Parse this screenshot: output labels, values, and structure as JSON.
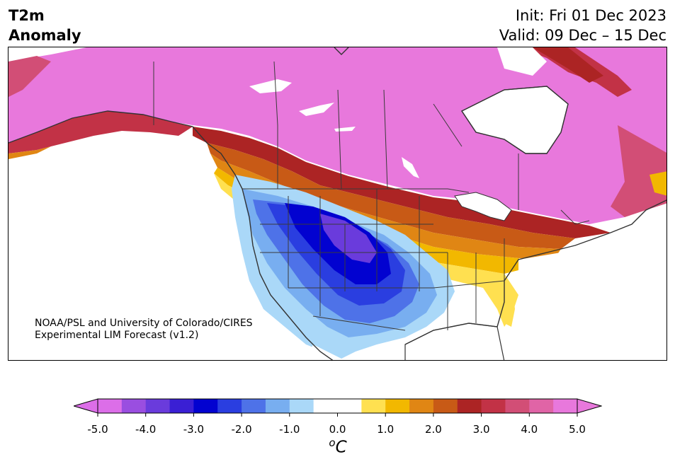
{
  "header": {
    "title_line1": "T2m",
    "title_line2": "Anomaly",
    "init": "Init: Fri 01 Dec 2023",
    "valid": "Valid: 09 Dec – 15 Dec"
  },
  "credit": {
    "line1": "NOAA/PSL and University of Colorado/CIRES",
    "line2": "Experimental LIM Forecast (v1.2)"
  },
  "colorbar": {
    "unit_base": "C",
    "unit_sup": "o",
    "ticks": [
      "-5.0",
      "-4.0",
      "-3.0",
      "-2.0",
      "-1.0",
      "0.0",
      "1.0",
      "2.0",
      "3.0",
      "4.0",
      "5.0"
    ],
    "tick_values": [
      -5,
      -4,
      -3,
      -2,
      -1,
      0,
      1,
      2,
      3,
      4,
      5
    ],
    "range": [
      -5.0,
      5.0
    ],
    "extend": "both",
    "colors": [
      "#dc6ee8",
      "#9a4ee0",
      "#6a3bdc",
      "#3a1fd4",
      "#0202d0",
      "#2a3ee0",
      "#4e72e8",
      "#78aef0",
      "#aad8f8",
      "#ffffff",
      "#ffffff",
      "#ffe050",
      "#f2b800",
      "#e08614",
      "#c85a16",
      "#ac2424",
      "#c23246",
      "#d24e76",
      "#e064a6",
      "#e878dc"
    ],
    "under_color": "#dc6ee8",
    "over_color": "#e878dc"
  }
}
